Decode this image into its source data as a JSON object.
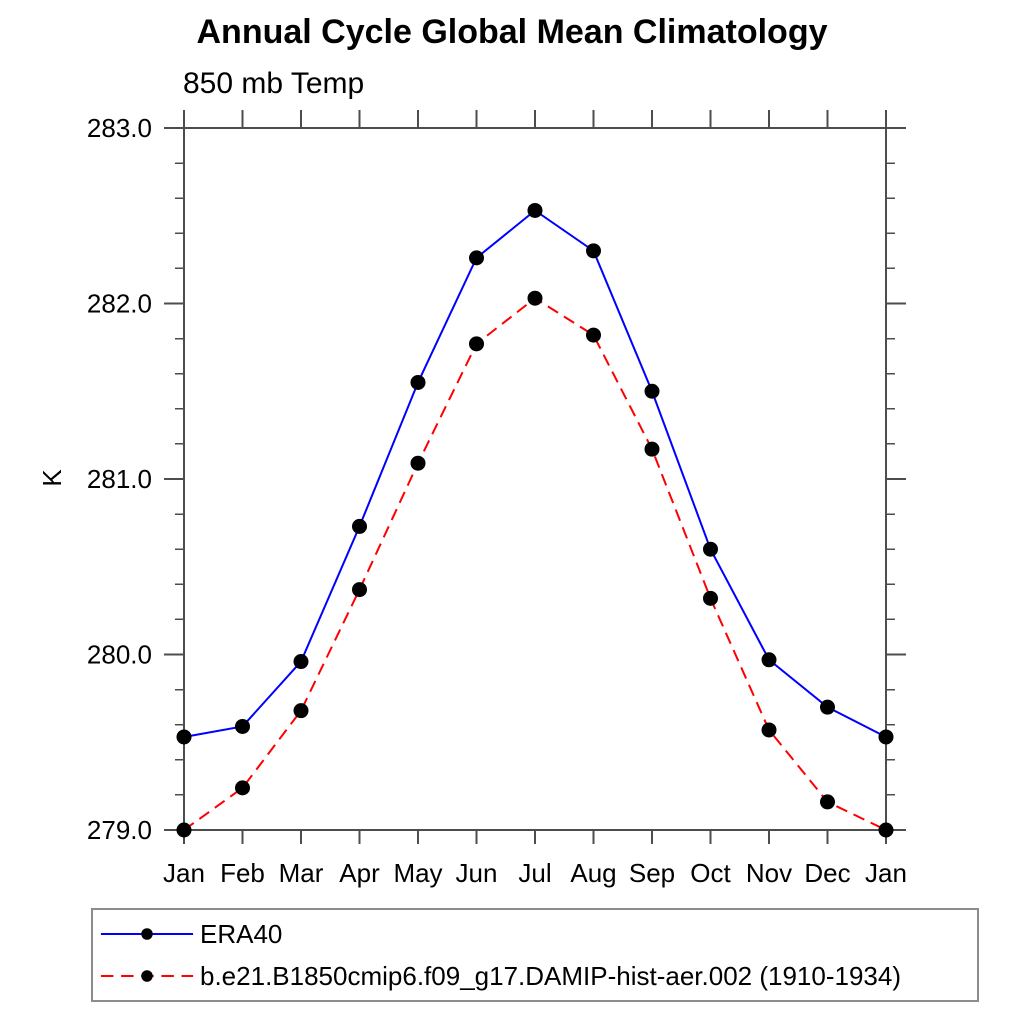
{
  "page": {
    "background": "#ffffff"
  },
  "chart_data": {
    "type": "line",
    "title": "Annual Cycle Global Mean Climatology",
    "subtitle": "850 mb Temp",
    "ylabel": "K",
    "ylim": [
      279.0,
      283.0
    ],
    "ytick_step": 1.0,
    "yminor_step": 0.2,
    "ytick_labels": [
      "279.0",
      "280.0",
      "281.0",
      "282.0",
      "283.0"
    ],
    "categories": [
      "Jan",
      "Feb",
      "Mar",
      "Apr",
      "May",
      "Jun",
      "Jul",
      "Aug",
      "Sep",
      "Oct",
      "Nov",
      "Dec",
      "Jan"
    ],
    "grid": false,
    "legend_position": "bottom-left",
    "series": [
      {
        "name": "ERA40",
        "color": "#0000ff",
        "line_style": "solid",
        "marker": "filled-circle",
        "marker_color": "#000000",
        "values": [
          279.53,
          279.59,
          279.96,
          280.73,
          281.55,
          282.26,
          282.53,
          282.3,
          281.5,
          280.6,
          279.97,
          279.7,
          279.53
        ]
      },
      {
        "name": "b.e21.B1850cmip6.f09_g17.DAMIP-hist-aer.002 (1910-1934)",
        "color": "#ff0000",
        "line_style": "dashed",
        "marker": "filled-circle",
        "marker_color": "#000000",
        "values": [
          279.0,
          279.24,
          279.68,
          280.37,
          281.09,
          281.77,
          282.03,
          281.82,
          281.17,
          280.32,
          279.57,
          279.16,
          279.0
        ]
      }
    ]
  }
}
